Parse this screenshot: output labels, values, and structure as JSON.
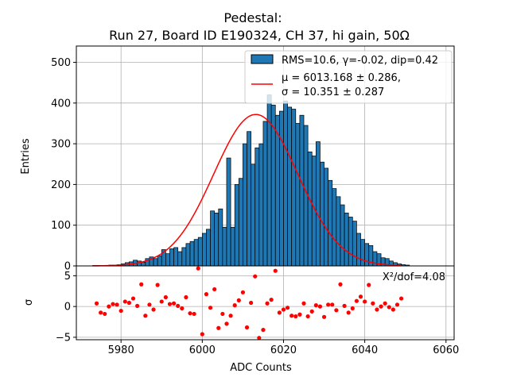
{
  "chart_data": {
    "type": "bar",
    "title_line1": "Pedestal:",
    "title_line2": "Run 27, Board ID E190324, CH 37, hi gain, 50Ω",
    "xlabel": "ADC Counts",
    "ylabel_top": "Entries",
    "ylabel_bottom": "σ",
    "xlim": [
      5969,
      6062
    ],
    "ylim_top": [
      0,
      540
    ],
    "ylim_bottom": [
      -5.4,
      6.6
    ],
    "xticks": [
      5980,
      6000,
      6020,
      6040,
      6060
    ],
    "yticks_top": [
      0,
      100,
      200,
      300,
      400,
      500
    ],
    "yticks_bottom": [
      -5,
      0,
      5
    ],
    "grid": true,
    "legend_position": "top-right",
    "legend": {
      "hist_label": "RMS=10.6, γ=-0.02, dip=0.42",
      "fit_label_line1": "μ = 6013.168 ± 0.286,",
      "fit_label_line2": "σ = 10.351 ± 0.287"
    },
    "chi2_annotation": "Χ²/dof=4.08",
    "bar_color": "#1f77b4",
    "fit_color": "#ff0000",
    "bin_width": 1,
    "histogram": {
      "bin_start": 5973,
      "counts": [
        1,
        1,
        1,
        1,
        2,
        2,
        3,
        5,
        8,
        10,
        14,
        12,
        9,
        18,
        22,
        18,
        25,
        40,
        30,
        42,
        45,
        35,
        45,
        55,
        60,
        65,
        70,
        80,
        90,
        135,
        130,
        140,
        95,
        265,
        95,
        200,
        215,
        300,
        330,
        250,
        290,
        300,
        355,
        420,
        395,
        370,
        380,
        405,
        390,
        385,
        350,
        370,
        345,
        280,
        270,
        305,
        255,
        240,
        210,
        190,
        170,
        150,
        130,
        120,
        110,
        80,
        65,
        55,
        50,
        35,
        30,
        20,
        18,
        12,
        8,
        5,
        3,
        2
      ]
    },
    "fit": {
      "amplitude": 372,
      "mu": 6013.168,
      "sigma": 10.351,
      "x_range": [
        5973,
        6049
      ]
    },
    "residuals": [
      {
        "x": 5974,
        "y": 0.5
      },
      {
        "x": 5975,
        "y": -1.0
      },
      {
        "x": 5976,
        "y": -1.2
      },
      {
        "x": 5977,
        "y": 0.0
      },
      {
        "x": 5978,
        "y": 0.4
      },
      {
        "x": 5979,
        "y": 0.3
      },
      {
        "x": 5980,
        "y": -0.7
      },
      {
        "x": 5981,
        "y": 0.8
      },
      {
        "x": 5982,
        "y": 0.6
      },
      {
        "x": 5983,
        "y": 1.3
      },
      {
        "x": 5984,
        "y": 0.1
      },
      {
        "x": 5985,
        "y": 3.6
      },
      {
        "x": 5986,
        "y": -1.5
      },
      {
        "x": 5987,
        "y": 0.3
      },
      {
        "x": 5988,
        "y": -0.5
      },
      {
        "x": 5989,
        "y": 3.5
      },
      {
        "x": 5990,
        "y": 0.8
      },
      {
        "x": 5991,
        "y": 1.5
      },
      {
        "x": 5992,
        "y": 0.4
      },
      {
        "x": 5993,
        "y": 0.5
      },
      {
        "x": 5994,
        "y": 0.1
      },
      {
        "x": 5995,
        "y": -0.3
      },
      {
        "x": 5996,
        "y": 1.5
      },
      {
        "x": 5997,
        "y": -1.1
      },
      {
        "x": 5998,
        "y": -1.2
      },
      {
        "x": 5999,
        "y": 6.2
      },
      {
        "x": 6000,
        "y": -4.5
      },
      {
        "x": 6001,
        "y": 2.0
      },
      {
        "x": 6002,
        "y": -0.2
      },
      {
        "x": 6003,
        "y": 2.8
      },
      {
        "x": 6004,
        "y": -3.5
      },
      {
        "x": 6005,
        "y": -1.2
      },
      {
        "x": 6006,
        "y": -2.8
      },
      {
        "x": 6007,
        "y": -1.5
      },
      {
        "x": 6008,
        "y": 0.2
      },
      {
        "x": 6009,
        "y": 1.0
      },
      {
        "x": 6010,
        "y": 2.3
      },
      {
        "x": 6011,
        "y": -3.4
      },
      {
        "x": 6012,
        "y": 0.6
      },
      {
        "x": 6013,
        "y": 4.9
      },
      {
        "x": 6014,
        "y": -5.1
      },
      {
        "x": 6015,
        "y": -3.8
      },
      {
        "x": 6016,
        "y": 0.5
      },
      {
        "x": 6017,
        "y": 1.1
      },
      {
        "x": 6018,
        "y": 5.8
      },
      {
        "x": 6019,
        "y": -1.0
      },
      {
        "x": 6020,
        "y": -0.5
      },
      {
        "x": 6021,
        "y": -0.2
      },
      {
        "x": 6022,
        "y": -1.5
      },
      {
        "x": 6023,
        "y": -1.6
      },
      {
        "x": 6024,
        "y": -1.3
      },
      {
        "x": 6025,
        "y": 0.5
      },
      {
        "x": 6026,
        "y": -1.6
      },
      {
        "x": 6027,
        "y": -0.8
      },
      {
        "x": 6028,
        "y": 0.2
      },
      {
        "x": 6029,
        "y": 0.0
      },
      {
        "x": 6030,
        "y": -1.7
      },
      {
        "x": 6031,
        "y": 0.3
      },
      {
        "x": 6032,
        "y": 0.3
      },
      {
        "x": 6033,
        "y": -0.6
      },
      {
        "x": 6034,
        "y": 3.6
      },
      {
        "x": 6035,
        "y": 0.1
      },
      {
        "x": 6036,
        "y": -1.0
      },
      {
        "x": 6037,
        "y": -0.3
      },
      {
        "x": 6038,
        "y": 0.9
      },
      {
        "x": 6039,
        "y": 1.6
      },
      {
        "x": 6040,
        "y": 0.8
      },
      {
        "x": 6041,
        "y": 3.5
      },
      {
        "x": 6042,
        "y": 0.5
      },
      {
        "x": 6043,
        "y": -0.5
      },
      {
        "x": 6044,
        "y": 0.0
      },
      {
        "x": 6045,
        "y": 0.5
      },
      {
        "x": 6046,
        "y": -0.1
      },
      {
        "x": 6047,
        "y": -0.5
      },
      {
        "x": 6048,
        "y": 0.3
      },
      {
        "x": 6049,
        "y": 1.3
      }
    ],
    "residual_color": "#ff0000"
  }
}
